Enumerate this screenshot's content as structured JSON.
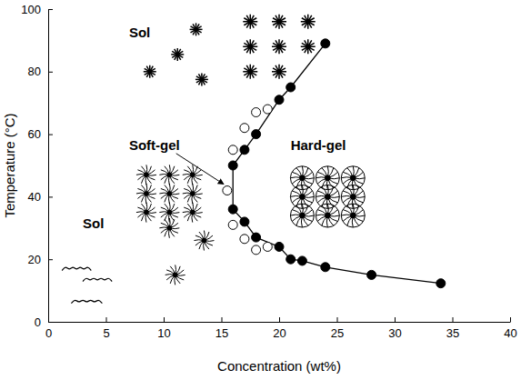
{
  "chart_data": {
    "type": "scatter",
    "xlabel": "Concentration (wt%)",
    "ylabel": "Temperature (°C)",
    "xlim": [
      0,
      40
    ],
    "ylim": [
      0,
      100
    ],
    "xticks": [
      0,
      5,
      10,
      15,
      20,
      25,
      30,
      35,
      40
    ],
    "yticks": [
      0,
      20,
      40,
      60,
      80,
      100
    ],
    "annotations": [
      "Sol",
      "Soft-gel",
      "Hard-gel",
      "Sol"
    ],
    "series": [
      {
        "color": "#000000",
        "marker": "filled-circle",
        "line_style": "solid",
        "x": [
          24,
          21,
          20,
          18,
          17,
          16,
          16,
          17,
          18,
          20,
          21,
          22,
          24,
          28,
          34
        ],
        "values": [
          89,
          75,
          71,
          60,
          55,
          50,
          36,
          32,
          27,
          24,
          20,
          19.5,
          17.5,
          15,
          12.3
        ]
      },
      {
        "color": "#000000",
        "marker": "open-circle",
        "line_style": "none",
        "x": [
          15.5,
          16,
          17,
          18,
          19,
          16,
          17,
          18,
          19
        ],
        "values": [
          42,
          55,
          62,
          67,
          68,
          31,
          26.5,
          23,
          24
        ]
      }
    ]
  }
}
